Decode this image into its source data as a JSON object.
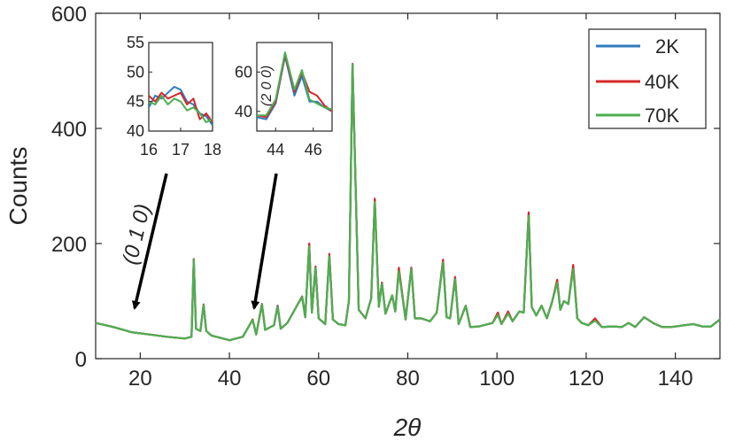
{
  "chart_data": {
    "type": "line",
    "xlabel": "2θ",
    "ylabel": "Counts",
    "xlim": [
      10,
      150
    ],
    "ylim": [
      0,
      600
    ],
    "xticks": [
      20,
      40,
      60,
      80,
      100,
      120,
      140
    ],
    "yticks": [
      0,
      200,
      400,
      600
    ],
    "legend": {
      "position": "top-right",
      "entries": [
        "2K",
        "40K",
        "70K"
      ]
    },
    "colors": {
      "2K": "#2e7bbf",
      "40K": "#d62728",
      "70K": "#4caf50"
    },
    "series": [
      {
        "name": "2K",
        "color": "#2e7bbf",
        "x": [
          10,
          14,
          18,
          22,
          26,
          30,
          31.5,
          32,
          32.5,
          33.5,
          34.2,
          34.8,
          36,
          38,
          40,
          43,
          44.5,
          45.2,
          46,
          47.3,
          48,
          50,
          50.8,
          51.5,
          53,
          55,
          56.3,
          57,
          57.9,
          58.5,
          59.3,
          60,
          61.5,
          62.4,
          63.2,
          64.5,
          66,
          66.8,
          67.6,
          69,
          70.5,
          71.8,
          72.6,
          73.5,
          74.2,
          75,
          76.5,
          77.2,
          78,
          79.5,
          80.8,
          81.6,
          83,
          85,
          86.5,
          87.9,
          88.7,
          89.5,
          90.6,
          91.4,
          93,
          94,
          96,
          99,
          100.2,
          101,
          102.5,
          103.5,
          105,
          106,
          107.1,
          107.8,
          108.8,
          110,
          111.2,
          112.4,
          113.5,
          114.2,
          115,
          116,
          117.1,
          118,
          119,
          120.5,
          122,
          123.5,
          126,
          128,
          129.5,
          131,
          133,
          135,
          137,
          139,
          142,
          144,
          146,
          148,
          150
        ],
        "y": [
          62,
          55,
          46,
          42,
          38,
          35,
          38,
          173,
          52,
          48,
          94,
          48,
          40,
          36,
          32,
          38,
          58,
          68,
          42,
          95,
          50,
          58,
          92,
          52,
          62,
          90,
          108,
          72,
          198,
          80,
          160,
          70,
          60,
          180,
          68,
          60,
          58,
          100,
          512,
          85,
          70,
          105,
          276,
          90,
          132,
          78,
          110,
          82,
          155,
          68,
          158,
          70,
          70,
          65,
          80,
          170,
          72,
          70,
          140,
          60,
          92,
          55,
          56,
          62,
          78,
          60,
          80,
          65,
          82,
          80,
          252,
          90,
          75,
          92,
          70,
          100,
          135,
          85,
          100,
          95,
          160,
          70,
          62,
          58,
          68,
          55,
          56,
          55,
          62,
          55,
          72,
          62,
          55,
          55,
          58,
          60,
          56,
          56,
          68
        ]
      },
      {
        "name": "40K",
        "color": "#d62728",
        "x": [
          10,
          14,
          18,
          22,
          26,
          30,
          31.5,
          32,
          32.5,
          33.5,
          34.2,
          34.8,
          36,
          38,
          40,
          43,
          44.5,
          45.2,
          46,
          47.3,
          48,
          50,
          50.8,
          51.5,
          53,
          55,
          56.3,
          57,
          57.9,
          58.5,
          59.3,
          60,
          61.5,
          62.4,
          63.2,
          64.5,
          66,
          66.8,
          67.6,
          69,
          70.5,
          71.8,
          72.6,
          73.5,
          74.2,
          75,
          76.5,
          77.2,
          78,
          79.5,
          80.8,
          81.6,
          83,
          85,
          86.5,
          87.9,
          88.7,
          89.5,
          90.6,
          91.4,
          93,
          94,
          96,
          99,
          100.2,
          101,
          102.5,
          103.5,
          105,
          106,
          107.1,
          107.8,
          108.8,
          110,
          111.2,
          112.4,
          113.5,
          114.2,
          115,
          116,
          117.1,
          118,
          119,
          120.5,
          122,
          123.5,
          126,
          128,
          129.5,
          131,
          133,
          135,
          137,
          139,
          142,
          144,
          146,
          148,
          150
        ],
        "y": [
          62,
          55,
          46,
          42,
          38,
          35,
          38,
          173,
          52,
          48,
          94,
          48,
          40,
          36,
          32,
          38,
          58,
          68,
          42,
          95,
          50,
          58,
          92,
          52,
          62,
          90,
          108,
          72,
          200,
          80,
          160,
          70,
          60,
          182,
          68,
          60,
          58,
          100,
          512,
          85,
          70,
          105,
          278,
          90,
          132,
          78,
          110,
          82,
          158,
          68,
          158,
          70,
          70,
          65,
          80,
          172,
          72,
          70,
          142,
          60,
          92,
          55,
          56,
          62,
          80,
          60,
          82,
          65,
          82,
          80,
          254,
          90,
          75,
          92,
          70,
          100,
          137,
          85,
          100,
          95,
          163,
          70,
          62,
          58,
          70,
          55,
          56,
          55,
          62,
          55,
          72,
          62,
          55,
          55,
          58,
          60,
          56,
          56,
          68
        ]
      },
      {
        "name": "70K",
        "color": "#4caf50",
        "x": [
          10,
          14,
          18,
          22,
          26,
          30,
          31.5,
          32,
          32.5,
          33.5,
          34.2,
          34.8,
          36,
          38,
          40,
          43,
          44.5,
          45.2,
          46,
          47.3,
          48,
          50,
          50.8,
          51.5,
          53,
          55,
          56.3,
          57,
          57.9,
          58.5,
          59.3,
          60,
          61.5,
          62.4,
          63.2,
          64.5,
          66,
          66.8,
          67.6,
          69,
          70.5,
          71.8,
          72.6,
          73.5,
          74.2,
          75,
          76.5,
          77.2,
          78,
          79.5,
          80.8,
          81.6,
          83,
          85,
          86.5,
          87.9,
          88.7,
          89.5,
          90.6,
          91.4,
          93,
          94,
          96,
          99,
          100.2,
          101,
          102.5,
          103.5,
          105,
          106,
          107.1,
          107.8,
          108.8,
          110,
          111.2,
          112.4,
          113.5,
          114.2,
          115,
          116,
          117.1,
          118,
          119,
          120.5,
          122,
          123.5,
          126,
          128,
          129.5,
          131,
          133,
          135,
          137,
          139,
          142,
          144,
          146,
          148,
          150
        ],
        "y": [
          62,
          55,
          46,
          42,
          38,
          35,
          38,
          172,
          52,
          48,
          93,
          48,
          40,
          36,
          32,
          38,
          58,
          67,
          42,
          94,
          50,
          58,
          91,
          52,
          62,
          90,
          107,
          72,
          195,
          80,
          158,
          70,
          60,
          178,
          68,
          60,
          58,
          100,
          511,
          85,
          70,
          105,
          272,
          90,
          130,
          78,
          110,
          82,
          152,
          68,
          156,
          70,
          70,
          65,
          80,
          167,
          72,
          70,
          138,
          60,
          92,
          55,
          56,
          62,
          76,
          60,
          78,
          65,
          82,
          80,
          248,
          90,
          75,
          92,
          70,
          100,
          132,
          85,
          100,
          95,
          156,
          70,
          62,
          58,
          66,
          55,
          56,
          55,
          62,
          55,
          72,
          62,
          55,
          55,
          58,
          60,
          56,
          56,
          68
        ]
      }
    ],
    "annotations": [
      {
        "text": "(0 1 0)",
        "arrow_to": [
          18,
          75
        ]
      },
      {
        "text": "",
        "arrow_to": [
          45,
          80
        ]
      }
    ],
    "insets": [
      {
        "xlim": [
          16,
          18
        ],
        "ylim": [
          40,
          55
        ],
        "xticks": [
          16,
          17,
          18
        ],
        "yticks": [
          40,
          45,
          50,
          55
        ],
        "series": [
          {
            "name": "2K",
            "x": [
              16,
              16.2,
              16.4,
              16.6,
              16.8,
              17.0,
              17.2,
              17.4,
              17.6,
              17.8,
              18
            ],
            "y": [
              44,
              46,
              45.5,
              46.5,
              47.5,
              47,
              45,
              44.5,
              43,
              42.5,
              41
            ]
          },
          {
            "name": "40K",
            "x": [
              16,
              16.2,
              16.4,
              16.6,
              16.8,
              17.0,
              17.2,
              17.4,
              17.6,
              17.8,
              18
            ],
            "y": [
              46,
              45,
              46.5,
              45.5,
              46,
              46.5,
              44.5,
              45.5,
              42,
              43,
              41.5
            ]
          },
          {
            "name": "70K",
            "x": [
              16,
              16.2,
              16.4,
              16.6,
              16.8,
              17.0,
              17.2,
              17.4,
              17.6,
              17.8,
              18
            ],
            "y": [
              45,
              44.5,
              46,
              44.5,
              45.5,
              45,
              43.5,
              44,
              43,
              41.5,
              42
            ]
          }
        ]
      },
      {
        "xlim": [
          43,
          47
        ],
        "ylim": [
          30,
          75
        ],
        "xticks": [
          44,
          46
        ],
        "yticks": [
          40,
          60
        ],
        "annotation": "(2 0 0)",
        "series": [
          {
            "name": "2K",
            "x": [
              43,
              43.5,
              44,
              44.5,
              45,
              45.4,
              45.8,
              46.2,
              46.6,
              47
            ],
            "y": [
              37,
              36,
              44,
              68,
              48,
              58,
              45,
              45,
              42,
              40
            ]
          },
          {
            "name": "40K",
            "x": [
              43,
              43.5,
              44,
              44.5,
              45,
              45.4,
              45.8,
              46.2,
              46.6,
              47
            ],
            "y": [
              38,
              37,
              45,
              69,
              50,
              60,
              50,
              48,
              43,
              40
            ]
          },
          {
            "name": "70K",
            "x": [
              43,
              43.5,
              44,
              44.5,
              45,
              45.4,
              45.8,
              46.2,
              46.6,
              47
            ],
            "y": [
              38,
              38,
              46,
              70,
              51,
              61,
              46,
              44,
              42,
              41
            ]
          }
        ]
      }
    ]
  }
}
